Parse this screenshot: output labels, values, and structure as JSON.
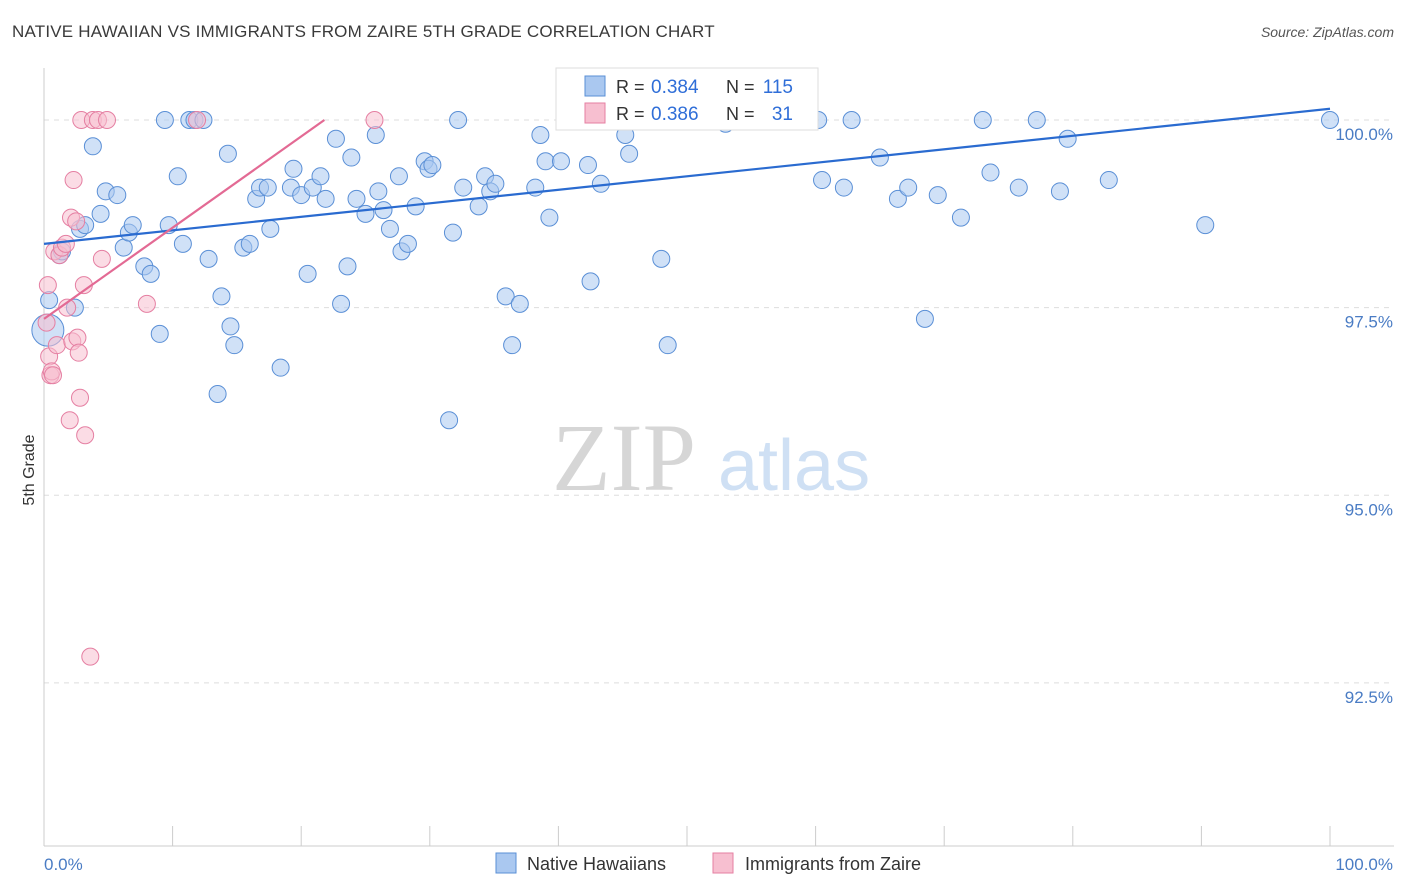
{
  "title": "NATIVE HAWAIIAN VS IMMIGRANTS FROM ZAIRE 5TH GRADE CORRELATION CHART",
  "source": "Source: ZipAtlas.com",
  "watermark": {
    "zip": "ZIP",
    "atlas": "atlas"
  },
  "colors": {
    "blue_fill": "#aac8f0",
    "blue_stroke": "#5a8fd6",
    "blue_line": "#2a6bd0",
    "pink_fill": "#f7bfd0",
    "pink_stroke": "#e57fa2",
    "pink_line": "#e36a94",
    "tick_text": "#4a7cc4",
    "grid": "#dddddd"
  },
  "legend": {
    "rows": [
      {
        "r_label": "R =",
        "r_value": "0.384",
        "n_label": "N =",
        "n_value": "115"
      },
      {
        "r_label": "R =",
        "r_value": "0.386",
        "n_label": "N =",
        "n_value": "31"
      }
    ]
  },
  "bottom_legend": [
    "Native Hawaiians",
    "Immigrants from Zaire"
  ],
  "chart_data": {
    "type": "scatter",
    "title": "NATIVE HAWAIIAN VS IMMIGRANTS FROM ZAIRE 5TH GRADE CORRELATION CHART",
    "xlabel": "",
    "ylabel": "5th Grade",
    "xlim": [
      0,
      100
    ],
    "ylim": [
      90.3,
      100.4
    ],
    "x_tick_labels": [
      "0.0%",
      "100.0%"
    ],
    "y_ticks": [
      100.0,
      97.5,
      95.0,
      92.5
    ],
    "y_tick_labels": [
      "100.0%",
      "97.5%",
      "95.0%",
      "92.5%"
    ],
    "series": [
      {
        "name": "Native Hawaiians",
        "color": "blue",
        "trend": {
          "x": [
            0,
            100
          ],
          "y": [
            98.35,
            100.15
          ]
        },
        "points": [
          [
            0.3,
            97.2
          ],
          [
            0.4,
            97.6
          ],
          [
            1.2,
            98.2
          ],
          [
            1.4,
            98.25
          ],
          [
            2.4,
            97.5
          ],
          [
            2.8,
            98.55
          ],
          [
            3.2,
            98.6
          ],
          [
            3.8,
            99.65
          ],
          [
            4.4,
            98.75
          ],
          [
            4.8,
            99.05
          ],
          [
            5.7,
            99.0
          ],
          [
            6.2,
            98.3
          ],
          [
            6.6,
            98.5
          ],
          [
            6.9,
            98.6
          ],
          [
            7.8,
            98.05
          ],
          [
            8.3,
            97.95
          ],
          [
            9.0,
            97.15
          ],
          [
            9.4,
            100.0
          ],
          [
            9.7,
            98.6
          ],
          [
            10.4,
            99.25
          ],
          [
            10.8,
            98.35
          ],
          [
            11.3,
            100.0
          ],
          [
            11.7,
            100.0
          ],
          [
            12.4,
            100.0
          ],
          [
            12.8,
            98.15
          ],
          [
            13.8,
            97.65
          ],
          [
            14.3,
            99.55
          ],
          [
            14.5,
            97.25
          ],
          [
            14.8,
            97.0
          ],
          [
            13.5,
            96.35
          ],
          [
            15.5,
            98.3
          ],
          [
            16.0,
            98.35
          ],
          [
            16.5,
            98.95
          ],
          [
            16.8,
            99.1
          ],
          [
            17.4,
            99.1
          ],
          [
            17.6,
            98.55
          ],
          [
            18.4,
            96.7
          ],
          [
            19.2,
            99.1
          ],
          [
            19.4,
            99.35
          ],
          [
            20.0,
            99.0
          ],
          [
            20.5,
            97.95
          ],
          [
            20.9,
            99.1
          ],
          [
            21.5,
            99.25
          ],
          [
            21.9,
            98.95
          ],
          [
            22.7,
            99.75
          ],
          [
            23.1,
            97.55
          ],
          [
            23.6,
            98.05
          ],
          [
            23.9,
            99.5
          ],
          [
            24.3,
            98.95
          ],
          [
            25.0,
            98.75
          ],
          [
            25.8,
            99.8
          ],
          [
            26.0,
            99.05
          ],
          [
            26.4,
            98.8
          ],
          [
            26.9,
            98.55
          ],
          [
            27.6,
            99.25
          ],
          [
            27.8,
            98.25
          ],
          [
            28.3,
            98.35
          ],
          [
            28.9,
            98.85
          ],
          [
            29.6,
            99.45
          ],
          [
            29.9,
            99.35
          ],
          [
            30.2,
            99.4
          ],
          [
            31.5,
            96.0
          ],
          [
            31.8,
            98.5
          ],
          [
            32.2,
            100.0
          ],
          [
            32.6,
            99.1
          ],
          [
            33.8,
            98.85
          ],
          [
            34.3,
            99.25
          ],
          [
            34.7,
            99.05
          ],
          [
            35.1,
            99.15
          ],
          [
            35.9,
            97.65
          ],
          [
            36.4,
            97.0
          ],
          [
            37.0,
            97.55
          ],
          [
            38.2,
            99.1
          ],
          [
            38.6,
            99.8
          ],
          [
            39.0,
            99.45
          ],
          [
            39.3,
            98.7
          ],
          [
            40.2,
            99.45
          ],
          [
            41.2,
            100.0
          ],
          [
            42.3,
            99.4
          ],
          [
            42.5,
            97.85
          ],
          [
            43.3,
            99.15
          ],
          [
            43.8,
            100.0
          ],
          [
            45.2,
            99.8
          ],
          [
            45.5,
            99.55
          ],
          [
            47.2,
            100.0
          ],
          [
            48.0,
            98.15
          ],
          [
            48.5,
            97.0
          ],
          [
            49.5,
            100.0
          ],
          [
            52.8,
            100.0
          ],
          [
            54.5,
            100.0
          ],
          [
            55.2,
            100.0
          ],
          [
            59.5,
            100.0
          ],
          [
            60.2,
            100.0
          ],
          [
            60.5,
            99.2
          ],
          [
            62.2,
            99.1
          ],
          [
            62.8,
            100.0
          ],
          [
            65.0,
            99.5
          ],
          [
            66.4,
            98.95
          ],
          [
            67.2,
            99.1
          ],
          [
            68.5,
            97.35
          ],
          [
            69.5,
            99.0
          ],
          [
            71.3,
            98.7
          ],
          [
            73.0,
            100.0
          ],
          [
            75.8,
            99.1
          ],
          [
            77.2,
            100.0
          ],
          [
            79.0,
            99.05
          ],
          [
            79.6,
            99.75
          ],
          [
            82.8,
            99.2
          ],
          [
            90.3,
            98.6
          ],
          [
            100.0,
            100.0
          ],
          [
            73.6,
            99.3
          ],
          [
            56.7,
            100.0
          ],
          [
            53.0,
            99.95
          ],
          [
            57.6,
            100.0
          ],
          [
            44.9,
            100.0
          ]
        ]
      },
      {
        "name": "Immigrants from Zaire",
        "color": "pink",
        "trend": {
          "x": [
            0,
            21.8
          ],
          "y": [
            97.35,
            100.0
          ]
        },
        "points": [
          [
            0.2,
            97.3
          ],
          [
            0.3,
            97.8
          ],
          [
            0.4,
            96.85
          ],
          [
            0.5,
            96.6
          ],
          [
            0.6,
            96.65
          ],
          [
            0.7,
            96.6
          ],
          [
            0.8,
            98.25
          ],
          [
            1.0,
            97.0
          ],
          [
            1.2,
            98.2
          ],
          [
            1.4,
            98.3
          ],
          [
            1.7,
            98.35
          ],
          [
            1.8,
            97.5
          ],
          [
            2.0,
            96.0
          ],
          [
            2.1,
            98.7
          ],
          [
            2.2,
            97.05
          ],
          [
            2.3,
            99.2
          ],
          [
            2.5,
            98.65
          ],
          [
            2.6,
            97.1
          ],
          [
            2.7,
            96.9
          ],
          [
            2.8,
            96.3
          ],
          [
            2.9,
            100.0
          ],
          [
            3.1,
            97.8
          ],
          [
            3.2,
            95.8
          ],
          [
            3.6,
            92.85
          ],
          [
            3.8,
            100.0
          ],
          [
            4.2,
            100.0
          ],
          [
            4.5,
            98.15
          ],
          [
            4.9,
            100.0
          ],
          [
            8.0,
            97.55
          ],
          [
            11.9,
            100.0
          ],
          [
            25.7,
            100.0
          ]
        ]
      }
    ]
  }
}
